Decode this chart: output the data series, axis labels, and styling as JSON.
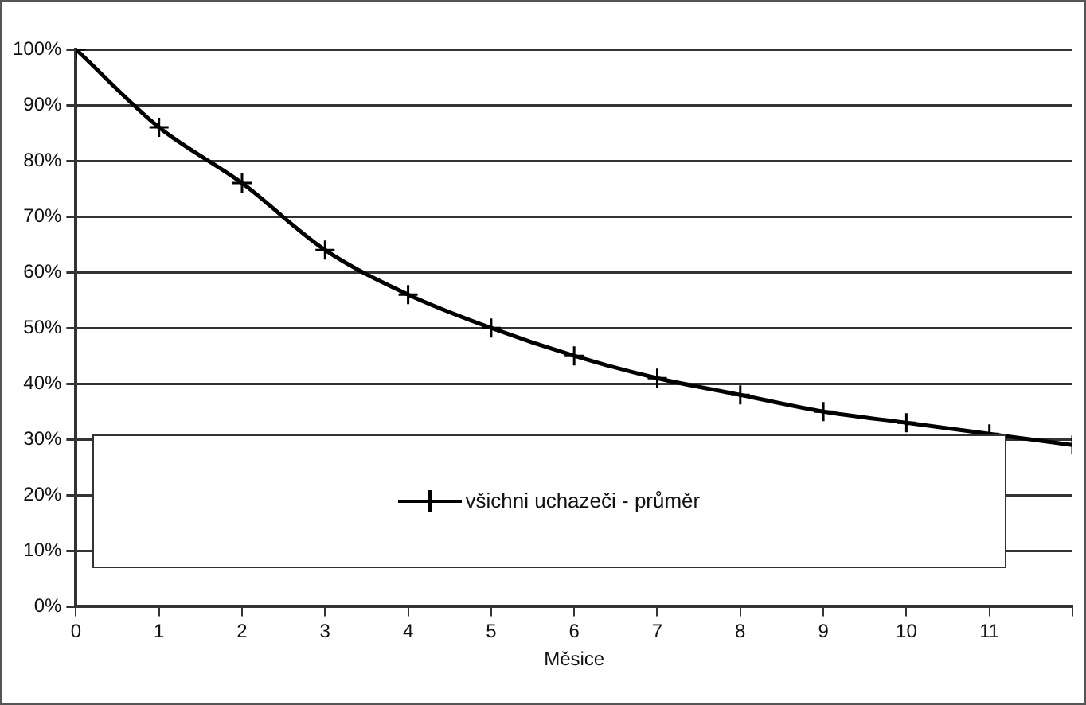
{
  "chart_data": {
    "type": "line",
    "xlabel": "Měsice",
    "x": [
      0,
      1,
      2,
      3,
      4,
      5,
      6,
      7,
      8,
      9,
      10,
      11,
      12
    ],
    "series": [
      {
        "name": "všichni uchazeči - průměr",
        "color": "#000000",
        "values": [
          100,
          86,
          76,
          64,
          56,
          50,
          45,
          41,
          38,
          35,
          33,
          31,
          29
        ]
      }
    ],
    "xlim": [
      0,
      12
    ],
    "xticks": [
      0,
      1,
      2,
      3,
      4,
      5,
      6,
      7,
      8,
      9,
      10,
      11,
      {
        "value": 12,
        "label": null
      }
    ],
    "ylim": [
      0,
      100
    ],
    "yticks": [
      {
        "value": 0,
        "label": "0%"
      },
      {
        "value": 10,
        "label": "10%"
      },
      {
        "value": 20,
        "label": "20%"
      },
      {
        "value": 30,
        "label": "30%"
      },
      {
        "value": 40,
        "label": "40%"
      },
      {
        "value": 50,
        "label": "50%"
      },
      {
        "value": 60,
        "label": "60%"
      },
      {
        "value": 70,
        "label": "70%"
      },
      {
        "value": 80,
        "label": "80%"
      },
      {
        "value": 90,
        "label": "90%"
      },
      {
        "value": 100,
        "label": "100%"
      }
    ],
    "grid": "y",
    "legend": "bottom",
    "marker": "cross",
    "line_style": "solid"
  }
}
